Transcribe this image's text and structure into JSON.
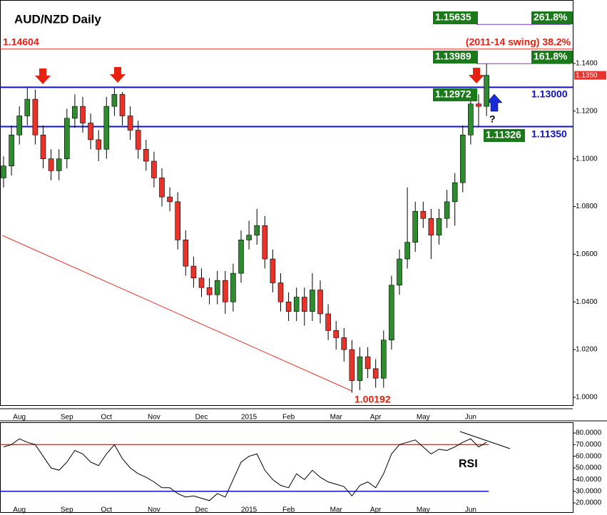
{
  "chart_data": {
    "type": "candlestick",
    "title": "AUD/NZD Daily",
    "categories": [
      null,
      null,
      "Aug",
      null,
      null,
      null,
      null,
      null,
      "Sep",
      null,
      null,
      null,
      null,
      "Oct",
      null,
      null,
      null,
      null,
      null,
      "Nov",
      null,
      null,
      null,
      null,
      null,
      "Dec",
      null,
      null,
      null,
      null,
      null,
      "2015",
      null,
      null,
      null,
      null,
      "Feb",
      null,
      null,
      null,
      null,
      null,
      "Mar",
      null,
      null,
      null,
      null,
      "Apr",
      null,
      null,
      null,
      null,
      null,
      "May",
      null,
      null,
      null,
      null,
      null,
      "Jun",
      null,
      null
    ],
    "open": [
      1.092,
      1.097,
      1.11,
      1.118,
      1.125,
      1.11,
      1.1,
      1.095,
      1.1,
      1.117,
      1.122,
      1.115,
      1.108,
      1.104,
      1.122,
      1.127,
      1.118,
      1.112,
      1.104,
      1.099,
      1.092,
      1.084,
      1.082,
      1.066,
      1.055,
      1.05,
      1.046,
      1.043,
      1.049,
      1.04,
      1.052,
      1.066,
      1.068,
      1.072,
      1.058,
      1.048,
      1.04,
      1.036,
      1.042,
      1.036,
      1.045,
      1.035,
      1.028,
      1.025,
      1.02,
      1.007,
      1.017,
      1.012,
      1.008,
      1.024,
      1.047,
      1.058,
      1.065,
      1.078,
      1.075,
      1.068,
      1.075,
      1.082,
      1.09,
      1.11,
      1.123,
      1.122
    ],
    "high": [
      1.101,
      1.114,
      1.122,
      1.1297,
      1.129,
      1.114,
      1.104,
      1.104,
      1.121,
      1.127,
      1.126,
      1.119,
      1.112,
      1.126,
      1.1297,
      1.128,
      1.122,
      1.116,
      1.108,
      1.103,
      1.096,
      1.088,
      1.086,
      1.07,
      1.059,
      1.054,
      1.05,
      1.053,
      1.053,
      1.056,
      1.07,
      1.074,
      1.079,
      1.076,
      1.062,
      1.052,
      1.044,
      1.046,
      1.046,
      1.052,
      1.049,
      1.039,
      1.032,
      1.029,
      1.024,
      1.021,
      1.021,
      1.016,
      1.028,
      1.051,
      1.062,
      1.088,
      1.082,
      1.082,
      1.079,
      1.079,
      1.087,
      1.094,
      1.114,
      1.1297,
      1.127,
      1.1399
    ],
    "low": [
      1.088,
      1.093,
      1.106,
      1.114,
      1.106,
      1.096,
      1.091,
      1.091,
      1.096,
      1.113,
      1.111,
      1.104,
      1.099,
      1.1,
      1.118,
      1.114,
      1.108,
      1.1,
      1.095,
      1.088,
      1.08,
      1.078,
      1.062,
      1.051,
      1.046,
      1.042,
      1.039,
      1.039,
      1.035,
      1.036,
      1.048,
      1.062,
      1.064,
      1.054,
      1.044,
      1.036,
      1.032,
      1.032,
      1.03,
      1.032,
      1.031,
      1.024,
      1.02,
      1.015,
      1.00192,
      1.003,
      1.008,
      1.004,
      1.004,
      1.02,
      1.043,
      1.054,
      1.061,
      1.071,
      1.058,
      1.064,
      1.071,
      1.072,
      1.086,
      1.106,
      1.11326,
      1.118
    ],
    "close": [
      1.097,
      1.11,
      1.118,
      1.125,
      1.11,
      1.1,
      1.095,
      1.1,
      1.117,
      1.122,
      1.115,
      1.108,
      1.104,
      1.122,
      1.127,
      1.118,
      1.112,
      1.104,
      1.099,
      1.092,
      1.084,
      1.082,
      1.066,
      1.055,
      1.05,
      1.046,
      1.043,
      1.049,
      1.04,
      1.052,
      1.066,
      1.068,
      1.072,
      1.058,
      1.048,
      1.04,
      1.036,
      1.042,
      1.036,
      1.045,
      1.035,
      1.028,
      1.025,
      1.02,
      1.007,
      1.017,
      1.012,
      1.008,
      1.024,
      1.047,
      1.058,
      1.065,
      1.078,
      1.075,
      1.068,
      1.075,
      1.082,
      1.09,
      1.11,
      1.123,
      1.122,
      1.135
    ],
    "up_color": "#2e8b2e",
    "down_color": "#e8322a",
    "ylim": [
      0.9967,
      1.1657
    ],
    "yticks": [
      {
        "value": 1.0,
        "label": "1.0000"
      },
      {
        "value": 1.02,
        "label": "1.0200"
      },
      {
        "value": 1.04,
        "label": "1.0400"
      },
      {
        "value": 1.06,
        "label": "1.0600"
      },
      {
        "value": 1.08,
        "label": "1.0800"
      },
      {
        "value": 1.1,
        "label": "1.1000"
      },
      {
        "value": 1.12,
        "label": "1.1200"
      },
      {
        "value": 1.14,
        "label": "1.1400"
      }
    ],
    "last_price": {
      "value": 1.135,
      "label": "1.1350"
    },
    "levels": [
      {
        "value": 1.15635,
        "label": "1.15635",
        "ratio": "261.8%",
        "color": "#7b3fd0"
      },
      {
        "value": 1.14604,
        "label": "1.14604",
        "note": "(2011-14 swing) 38.2%",
        "color": "#e8322a"
      },
      {
        "value": 1.13989,
        "label": "1.13989",
        "ratio": "161.8%",
        "color": "#7b3fd0"
      },
      {
        "value": 1.13,
        "label": "1.13000",
        "color": "#1010c8"
      },
      {
        "value": 1.1135,
        "label": "1.11350",
        "color": "#1010c8"
      }
    ],
    "price_labels": [
      {
        "value": 1.12972,
        "label": "1.12972"
      },
      {
        "value": 1.11326,
        "label": "1.11326"
      },
      {
        "value": 1.00192,
        "label": "1.00192"
      }
    ],
    "annotation": "?",
    "rsi": {
      "name": "RSI",
      "values": [
        68,
        70,
        75,
        72,
        70,
        60,
        50,
        48,
        55,
        65,
        62,
        55,
        52,
        62,
        70,
        58,
        50,
        45,
        42,
        38,
        33,
        33,
        28,
        25,
        26,
        24,
        22,
        28,
        25,
        40,
        55,
        60,
        62,
        48,
        40,
        35,
        33,
        45,
        40,
        48,
        42,
        38,
        36,
        34,
        26,
        35,
        38,
        33,
        45,
        62,
        70,
        72,
        74,
        68,
        62,
        66,
        65,
        68,
        72,
        75,
        68,
        72
      ],
      "ylim": [
        13.3,
        86.1
      ],
      "yticks": [
        {
          "value": 20,
          "label": "20.0000"
        },
        {
          "value": 30,
          "label": "30.0000"
        },
        {
          "value": 40,
          "label": "40.0000"
        },
        {
          "value": 50,
          "label": "50.0000"
        },
        {
          "value": 60,
          "label": "60.0000"
        },
        {
          "value": 70,
          "label": "70.0000"
        },
        {
          "value": 80,
          "label": "80.0000"
        }
      ],
      "overbought": 70,
      "oversold": 30
    }
  }
}
